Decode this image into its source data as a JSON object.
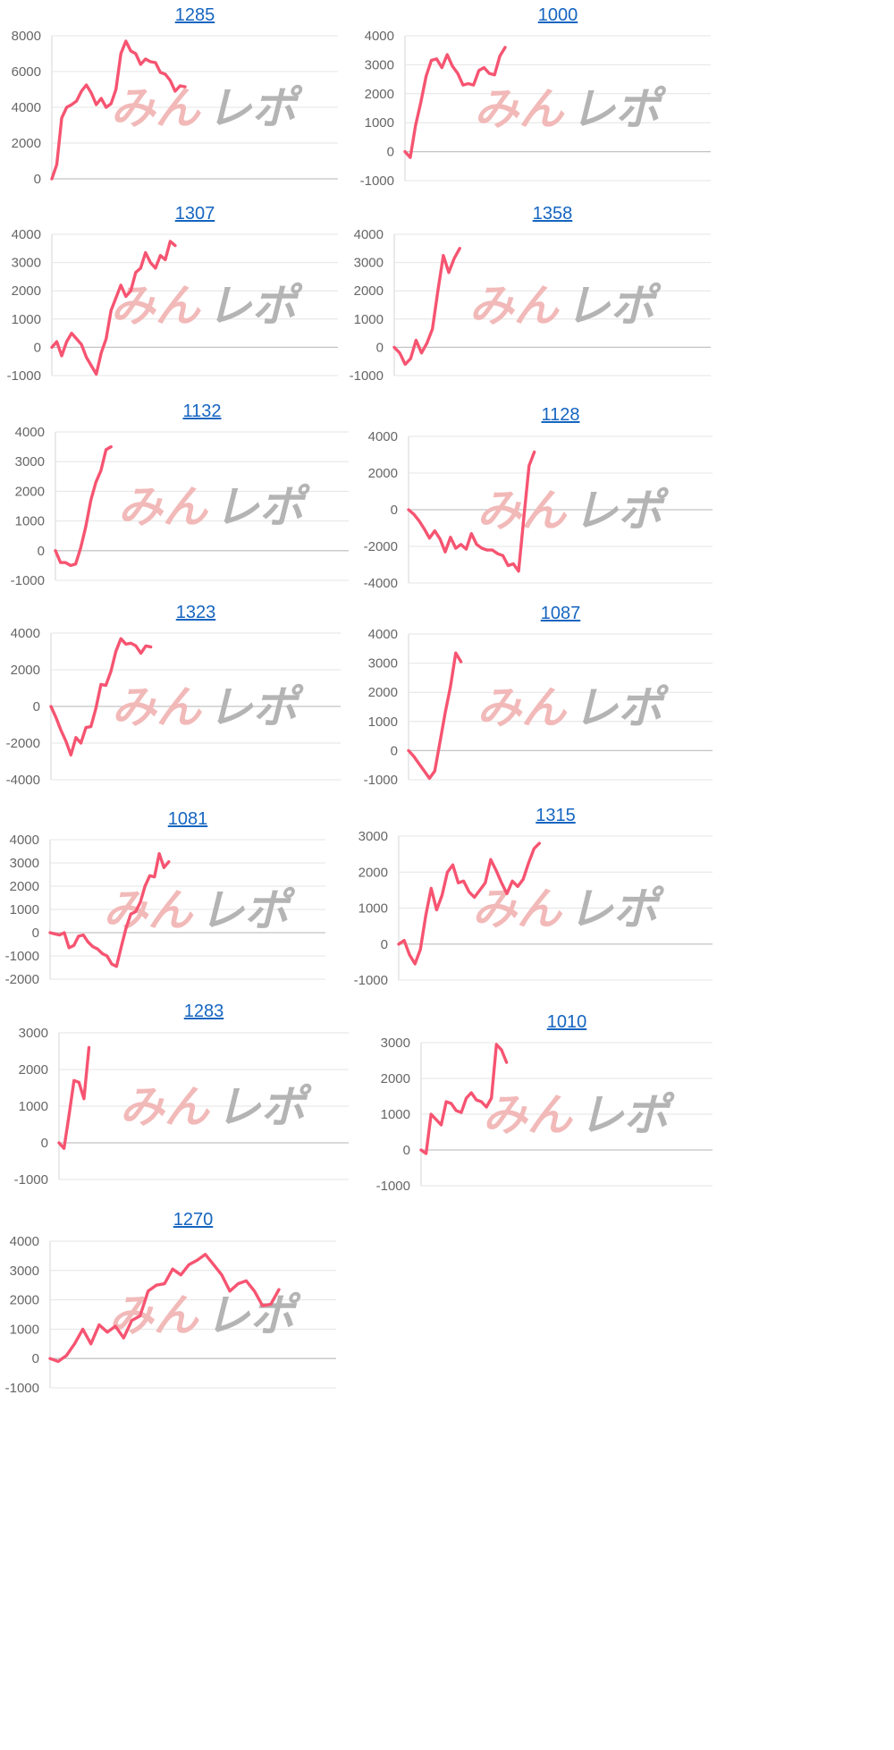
{
  "watermark": {
    "text1": "みん",
    "text2": "レポ",
    "color1": "#f2b9b9",
    "color2": "#b4b4b4"
  },
  "line_color": "#f65471",
  "chart_data": [
    {
      "type": "line",
      "title": "1285",
      "ylim": [
        0,
        8000
      ],
      "yticks": [
        0,
        2000,
        4000,
        6000,
        8000
      ],
      "xmax": 58,
      "values": [
        0,
        800,
        3400,
        4000,
        4150,
        4350,
        4900,
        5250,
        4800,
        4150,
        4500,
        4000,
        4200,
        5000,
        7000,
        7700,
        7150,
        7000,
        6400,
        6700,
        6550,
        6500,
        5950,
        5850,
        5500,
        4900,
        5200,
        5150
      ]
    },
    {
      "type": "line",
      "title": "1000",
      "ylim": [
        -1000,
        4000
      ],
      "yticks": [
        -1000,
        0,
        1000,
        2000,
        3000,
        4000
      ],
      "xmax": 58,
      "values": [
        0,
        -200,
        900,
        1700,
        2600,
        3150,
        3200,
        2900,
        3350,
        2950,
        2700,
        2300,
        2350,
        2300,
        2800,
        2900,
        2700,
        2650,
        3300,
        3600
      ]
    },
    {
      "type": "line",
      "title": "1307",
      "ylim": [
        -1000,
        4000
      ],
      "yticks": [
        -1000,
        0,
        1000,
        2000,
        3000,
        4000
      ],
      "xmax": 58,
      "values": [
        0,
        200,
        -300,
        200,
        500,
        300,
        100,
        -350,
        -650,
        -950,
        -200,
        300,
        1300,
        1750,
        2200,
        1800,
        2000,
        2650,
        2800,
        3350,
        3000,
        2800,
        3250,
        3100,
        3750,
        3600
      ]
    },
    {
      "type": "line",
      "title": "1358",
      "ylim": [
        -1000,
        4000
      ],
      "yticks": [
        -1000,
        0,
        1000,
        2000,
        3000,
        4000
      ],
      "xmax": 58,
      "values": [
        0,
        -200,
        -600,
        -400,
        250,
        -200,
        150,
        650,
        2000,
        3250,
        2650,
        3150,
        3500
      ]
    },
    {
      "type": "line",
      "title": "1132",
      "ylim": [
        -1000,
        4000
      ],
      "yticks": [
        -1000,
        0,
        1000,
        2000,
        3000,
        4000
      ],
      "xmax": 58,
      "values": [
        0,
        -400,
        -400,
        -500,
        -450,
        100,
        800,
        1700,
        2300,
        2700,
        3400,
        3500
      ]
    },
    {
      "type": "line",
      "title": "1128",
      "ylim": [
        -4000,
        4000
      ],
      "yticks": [
        -4000,
        -2000,
        0,
        2000,
        4000
      ],
      "xmax": 58,
      "values": [
        0,
        -250,
        -600,
        -1050,
        -1550,
        -1150,
        -1600,
        -2300,
        -1500,
        -2100,
        -1900,
        -2150,
        -1300,
        -1900,
        -2100,
        -2200,
        -2200,
        -2400,
        -2500,
        -3050,
        -2950,
        -3350,
        -400,
        2400,
        3150
      ]
    },
    {
      "type": "line",
      "title": "1323",
      "ylim": [
        -4000,
        4000
      ],
      "yticks": [
        -4000,
        -2000,
        0,
        2000,
        4000
      ],
      "xmax": 58,
      "values": [
        0,
        -600,
        -1300,
        -1900,
        -2650,
        -1700,
        -2000,
        -1150,
        -1100,
        -100,
        1200,
        1150,
        1900,
        3000,
        3700,
        3400,
        3450,
        3300,
        2900,
        3300,
        3250
      ]
    },
    {
      "type": "line",
      "title": "1087",
      "ylim": [
        -1000,
        4000
      ],
      "yticks": [
        -1000,
        0,
        1000,
        2000,
        3000,
        4000
      ],
      "xmax": 58,
      "values": [
        0,
        -200,
        -450,
        -700,
        -950,
        -700,
        300,
        1300,
        2200,
        3350,
        3050
      ]
    },
    {
      "type": "line",
      "title": "1081",
      "ylim": [
        -2000,
        4000
      ],
      "yticks": [
        -2000,
        -1000,
        0,
        1000,
        2000,
        3000,
        4000
      ],
      "xmax": 58,
      "values": [
        0,
        -50,
        -100,
        0,
        -650,
        -550,
        -150,
        -100,
        -400,
        -600,
        -700,
        -900,
        -1000,
        -1350,
        -1450,
        -600,
        200,
        800,
        900,
        1300,
        2000,
        2450,
        2400,
        3400,
        2800,
        3050
      ]
    },
    {
      "type": "line",
      "title": "1315",
      "ylim": [
        -1000,
        3000
      ],
      "yticks": [
        -1000,
        0,
        1000,
        2000,
        3000
      ],
      "xmax": 58,
      "values": [
        0,
        100,
        -300,
        -550,
        -150,
        800,
        1550,
        950,
        1350,
        2000,
        2200,
        1700,
        1750,
        1450,
        1300,
        1500,
        1700,
        2350,
        2050,
        1700,
        1400,
        1750,
        1600,
        1800,
        2250,
        2650,
        2800
      ]
    },
    {
      "type": "line",
      "title": "1283",
      "ylim": [
        -1000,
        3000
      ],
      "yticks": [
        -1000,
        0,
        1000,
        2000,
        3000
      ],
      "xmax": 58,
      "values": [
        0,
        -150,
        750,
        1700,
        1650,
        1200,
        2600
      ]
    },
    {
      "type": "line",
      "title": "1010",
      "ylim": [
        -1000,
        3000
      ],
      "yticks": [
        -1000,
        0,
        1000,
        2000,
        3000
      ],
      "xmax": 58,
      "values": [
        0,
        -100,
        1000,
        850,
        700,
        1350,
        1300,
        1100,
        1050,
        1450,
        1600,
        1400,
        1350,
        1200,
        1450,
        2950,
        2800,
        2450
      ]
    },
    {
      "type": "line",
      "title": "1270",
      "ylim": [
        -1000,
        4000
      ],
      "yticks": [
        -1000,
        0,
        1000,
        2000,
        3000,
        4000
      ],
      "xmax": 35,
      "values": [
        0,
        -100,
        100,
        500,
        1000,
        500,
        1150,
        900,
        1100,
        700,
        1300,
        1450,
        2300,
        2500,
        2550,
        3050,
        2850,
        3200,
        3350,
        3550,
        3200,
        2850,
        2300,
        2550,
        2650,
        2300,
        1800,
        1850,
        2350
      ]
    }
  ]
}
